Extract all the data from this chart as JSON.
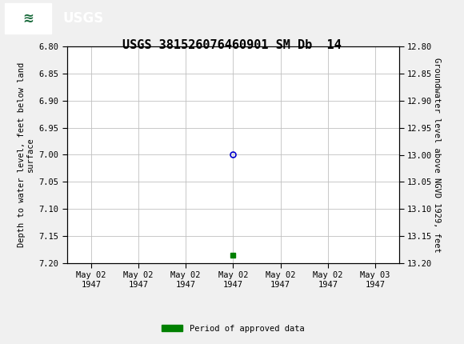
{
  "title": "USGS 381526076460901 SM Db  14",
  "ylabel_left": "Depth to water level, feet below land\nsurface",
  "ylabel_right": "Groundwater level above NGVD 1929, feet",
  "ylim_left": [
    6.8,
    7.2
  ],
  "ylim_right": [
    12.8,
    13.2
  ],
  "yticks_left": [
    6.8,
    6.85,
    6.9,
    6.95,
    7.0,
    7.05,
    7.1,
    7.15,
    7.2
  ],
  "yticks_right": [
    12.8,
    12.85,
    12.9,
    12.95,
    13.0,
    13.05,
    13.1,
    13.15,
    13.2
  ],
  "data_point_x": 3.0,
  "data_point_y": 7.0,
  "data_point_color": "#0000cc",
  "marker_style": "o",
  "marker_size": 5,
  "marker_facecolor": "none",
  "marker_edgewidth": 1.2,
  "green_marker_x": 3.0,
  "green_marker_y": 7.185,
  "green_marker_color": "#008000",
  "green_marker_style": "s",
  "green_marker_size": 4,
  "fig_bg_color": "#f0f0f0",
  "plot_bg_color": "#ffffff",
  "grid_color": "#c0c0c0",
  "header_bg_color": "#1a6b3c",
  "legend_label": "Period of approved data",
  "legend_color": "#008000",
  "title_fontsize": 11,
  "axis_label_fontsize": 7.5,
  "tick_fontsize": 7.5,
  "xlabel_dates": [
    "May 02\n1947",
    "May 02\n1947",
    "May 02\n1947",
    "May 02\n1947",
    "May 02\n1947",
    "May 02\n1947",
    "May 03\n1947"
  ],
  "x_positions": [
    0,
    1,
    2,
    3,
    4,
    5,
    6
  ],
  "xlim": [
    -0.5,
    6.5
  ]
}
